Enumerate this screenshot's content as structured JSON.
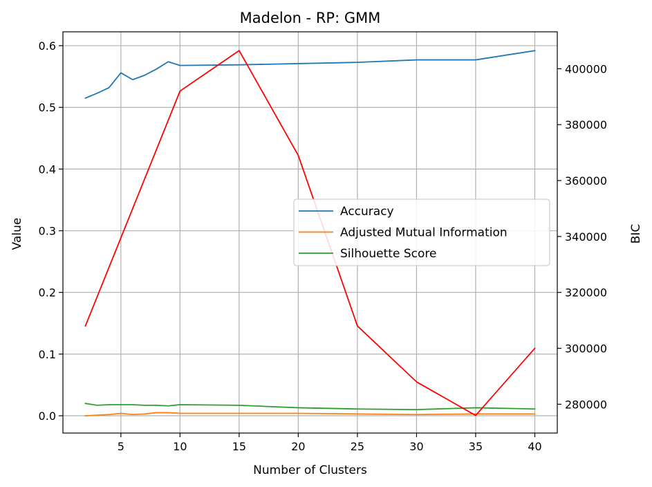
{
  "chart_data": {
    "type": "line",
    "title": "Madelon - RP: GMM",
    "xlabel": "Number of Clusters",
    "ylabel": "Value",
    "y2label": "BIC",
    "xlim": [
      0.1,
      41.9
    ],
    "ylim": [
      -0.028,
      0.6225
    ],
    "y2lim": [
      269700,
      413200
    ],
    "xticks": [
      5,
      10,
      15,
      20,
      25,
      30,
      35,
      40
    ],
    "xtick_labels": [
      "5",
      "10",
      "15",
      "20",
      "25",
      "30",
      "35",
      "40"
    ],
    "yticks": [
      0.0,
      0.1,
      0.2,
      0.3,
      0.4,
      0.5,
      0.6
    ],
    "ytick_labels": [
      "0.0",
      "0.1",
      "0.2",
      "0.3",
      "0.4",
      "0.5",
      "0.6"
    ],
    "y2ticks": [
      280000,
      300000,
      320000,
      340000,
      360000,
      380000,
      400000
    ],
    "y2tick_labels": [
      "280000",
      "300000",
      "320000",
      "340000",
      "360000",
      "380000",
      "400000"
    ],
    "grid": true,
    "legend_position": "center-right",
    "x": [
      2,
      3,
      4,
      5,
      6,
      7,
      8,
      9,
      10,
      15,
      20,
      25,
      30,
      35,
      40
    ],
    "series": [
      {
        "name": "Accuracy",
        "axis": "left",
        "color": "#1f77b4",
        "values": [
          0.515,
          0.523,
          0.532,
          0.556,
          0.545,
          0.552,
          0.562,
          0.574,
          0.568,
          0.569,
          0.571,
          0.573,
          0.577,
          0.577,
          0.592
        ]
      },
      {
        "name": "Adjusted Mutual Information",
        "axis": "left",
        "color": "#ff7f0e",
        "values": [
          0.0,
          0.001,
          0.002,
          0.004,
          0.002,
          0.003,
          0.005,
          0.005,
          0.004,
          0.004,
          0.004,
          0.003,
          0.002,
          0.003,
          0.003
        ]
      },
      {
        "name": "Silhouette Score",
        "axis": "left",
        "color": "#2ca02c",
        "values": [
          0.02,
          0.017,
          0.018,
          0.018,
          0.018,
          0.017,
          0.017,
          0.016,
          0.018,
          0.017,
          0.013,
          0.011,
          0.01,
          0.013,
          0.011
        ]
      },
      {
        "axis": "right",
        "color": "#ff0000",
        "x": [
          2,
          10,
          15,
          20,
          25,
          30,
          35,
          40
        ],
        "values": [
          308000,
          392000,
          406500,
          369000,
          308000,
          288000,
          276000,
          300000
        ]
      }
    ]
  }
}
